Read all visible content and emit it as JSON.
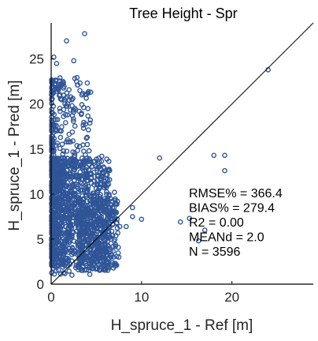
{
  "chart_data": {
    "type": "scatter",
    "title": "Tree Height - Spr",
    "xlabel": "H_spruce_1 - Ref [m]",
    "ylabel": "H_spruce_1 - Pred [m]",
    "xlim": [
      0,
      29
    ],
    "ylim": [
      0,
      29
    ],
    "x_ticks": [
      0,
      10,
      20
    ],
    "y_ticks": [
      0,
      5,
      10,
      15,
      20,
      25
    ],
    "grid": false,
    "reference_line": "1:1",
    "marker_color": "#2f5597",
    "stats": [
      "RMSE% = 366.4",
      "BIAS% = 279.4",
      "R2 = 0.00",
      "MEANd = 2.0",
      "N = 3596"
    ],
    "outliers": [
      {
        "x": 1.7,
        "y": 27.0
      },
      {
        "x": 3.7,
        "y": 27.8
      },
      {
        "x": 0.3,
        "y": 25.2
      },
      {
        "x": 0.6,
        "y": 24.5
      },
      {
        "x": 2.5,
        "y": 24.8
      },
      {
        "x": 24.0,
        "y": 23.8
      },
      {
        "x": 12.0,
        "y": 14.0
      },
      {
        "x": 18.0,
        "y": 14.3
      },
      {
        "x": 19.2,
        "y": 14.3
      },
      {
        "x": 19.2,
        "y": 12.6
      },
      {
        "x": 15.3,
        "y": 7.3
      },
      {
        "x": 14.3,
        "y": 6.9
      },
      {
        "x": 17.0,
        "y": 6.0
      },
      {
        "x": 10.0,
        "y": 7.2
      },
      {
        "x": 9.0,
        "y": 8.5
      },
      {
        "x": 9.0,
        "y": 7.5
      },
      {
        "x": 8.3,
        "y": 6.4
      },
      {
        "x": 7.6,
        "y": 6.4
      },
      {
        "x": 16.3,
        "y": 4.8
      },
      {
        "x": 2.3,
        "y": 1.0
      },
      {
        "x": 3.0,
        "y": 1.6
      },
      {
        "x": 4.5,
        "y": 2.8
      },
      {
        "x": 5.2,
        "y": 3.6
      },
      {
        "x": 6.0,
        "y": 4.3
      },
      {
        "x": 6.5,
        "y": 5.2
      },
      {
        "x": 6.8,
        "y": 6.6
      },
      {
        "x": 4.2,
        "y": 8.0
      },
      {
        "x": 4.6,
        "y": 9.0
      },
      {
        "x": 5.2,
        "y": 12.0
      },
      {
        "x": 5.6,
        "y": 14.2
      },
      {
        "x": 4.2,
        "y": 14.8
      },
      {
        "x": 3.1,
        "y": 19.2
      },
      {
        "x": 3.4,
        "y": 21.0
      },
      {
        "x": 3.9,
        "y": 16.2
      },
      {
        "x": 2.8,
        "y": 22.5
      },
      {
        "x": 6.2,
        "y": 11.0
      },
      {
        "x": 6.4,
        "y": 9.8
      },
      {
        "x": 7.2,
        "y": 8.9
      },
      {
        "x": 7.0,
        "y": 10.2
      },
      {
        "x": 5.8,
        "y": 13.0
      }
    ]
  }
}
